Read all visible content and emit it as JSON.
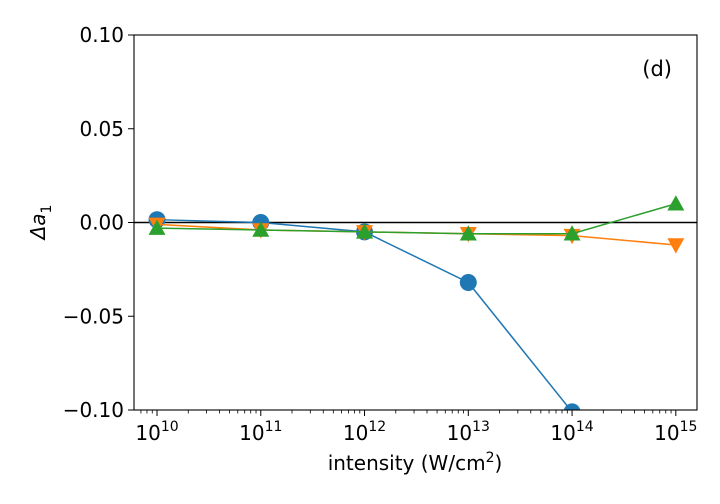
{
  "chart_data": {
    "type": "line",
    "panel_label": "(d)",
    "xlabel_prefix": "intensity (W/cm",
    "xlabel_sup": "2",
    "xlabel_suffix": ")",
    "ylabel_prefix": "Δa",
    "ylabel_sub": "1",
    "x_scale": "log",
    "x": [
      10000000000.0,
      100000000000.0,
      1000000000000.0,
      10000000000000.0,
      100000000000000.0,
      1000000000000000.0
    ],
    "x_tick_base": "10",
    "x_tick_exponents": [
      "10",
      "11",
      "12",
      "13",
      "14",
      "15"
    ],
    "xlim": [
      6000000000.0,
      1600000000000000.0
    ],
    "ylim": [
      -0.1,
      0.1
    ],
    "y_ticks": [
      0.1,
      0.05,
      0.0,
      -0.05,
      -0.1
    ],
    "y_tick_labels": [
      "0.10",
      "0.05",
      "0.00",
      "−0.05",
      "−0.10"
    ],
    "reference_line_y": 0.0,
    "grid": false,
    "legend": "none",
    "series": [
      {
        "color": "#1f77b4",
        "marker": "circle",
        "values": [
          0.0015,
          0.0,
          -0.005,
          -0.032,
          -0.101,
          null
        ]
      },
      {
        "color": "#ff7f0e",
        "marker": "triangle-down",
        "values": [
          -0.001,
          -0.004,
          -0.005,
          -0.006,
          -0.007,
          -0.012
        ]
      },
      {
        "color": "#2ca02c",
        "marker": "triangle-up",
        "values": [
          -0.003,
          -0.004,
          -0.005,
          -0.006,
          -0.006,
          0.01
        ]
      }
    ]
  }
}
